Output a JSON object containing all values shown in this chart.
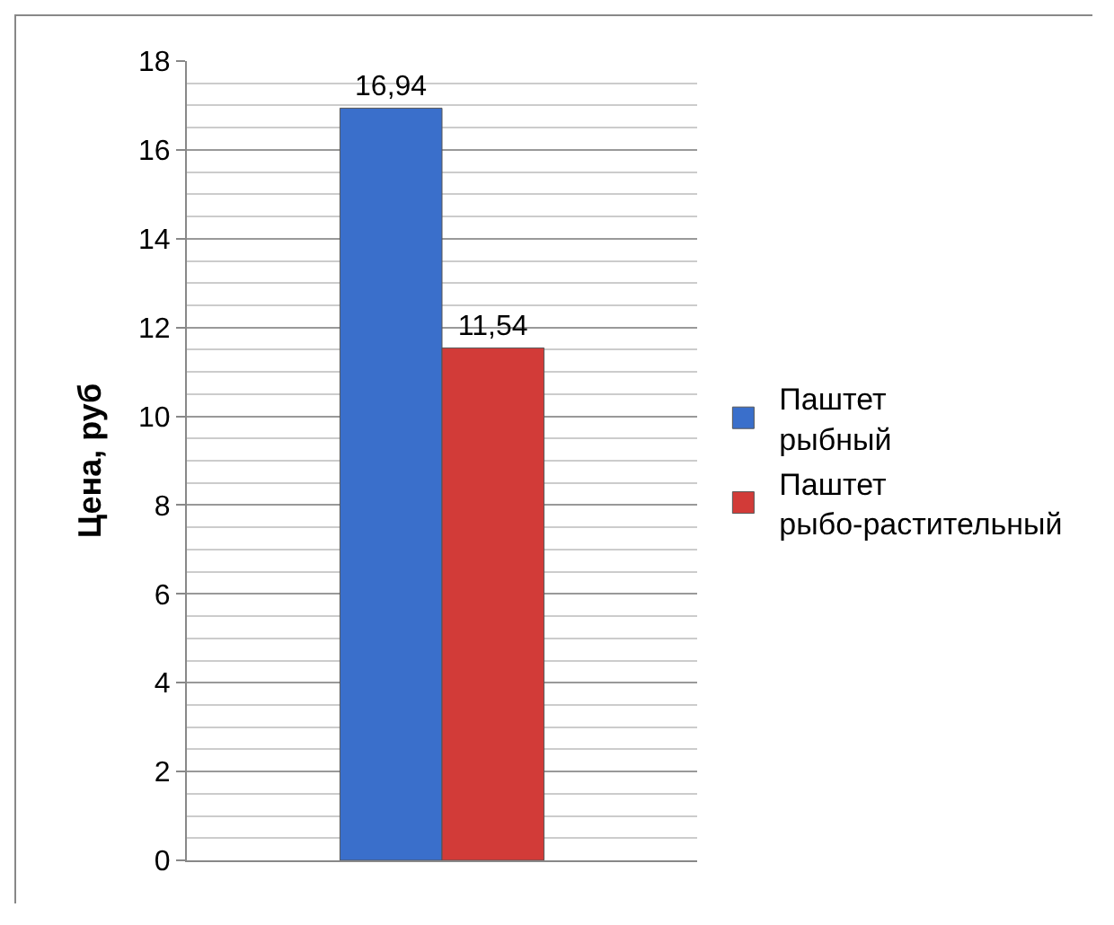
{
  "chart_data": {
    "type": "bar",
    "ylabel": "Цена, руб",
    "categories": [
      null
    ],
    "series": [
      {
        "name": "Паштет рыбный",
        "color": "#3a6fcb",
        "values": [
          16.94
        ],
        "value_labels": [
          "16,94"
        ]
      },
      {
        "name": "Паштет рыбо-растительный",
        "color": "#d23b38",
        "values": [
          11.54
        ],
        "value_labels": [
          "11,54"
        ]
      }
    ],
    "ylim": [
      0,
      18
    ],
    "yticks": [
      0,
      2,
      4,
      6,
      8,
      10,
      12,
      14,
      16,
      18
    ],
    "grid": "y",
    "legend": "right"
  }
}
